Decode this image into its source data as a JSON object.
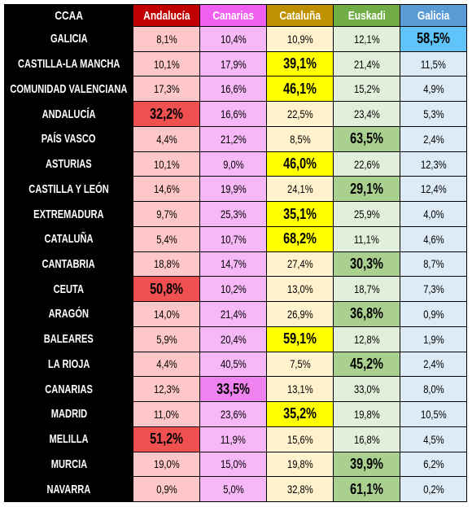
{
  "table": {
    "columns": [
      {
        "name": "CCAA",
        "header_color": "#000000",
        "cell_color": "#000000"
      },
      {
        "name": "Andalucía",
        "header_color": "#c00000",
        "cell_color": "#ffc7c7",
        "highlight_color": "#f05050"
      },
      {
        "name": "Canarias",
        "header_color": "#f060f0",
        "cell_color": "#f7b8f7",
        "highlight_color": "#ee82ee"
      },
      {
        "name": "Cataluña",
        "header_color": "#bf9000",
        "cell_color": "#fff2cc",
        "highlight_color": "#ffff00"
      },
      {
        "name": "Euskadi",
        "header_color": "#70ad47",
        "cell_color": "#e2efda",
        "highlight_color": "#a9d08e"
      },
      {
        "name": "Galicia",
        "header_color": "#5b9bd5",
        "cell_color": "#ddebf7",
        "highlight_color": "#5ec4fa"
      }
    ],
    "rows": [
      [
        "GALICIA",
        "8,1%",
        "10,4%",
        "10,9%",
        "12,1%",
        "58,5%"
      ],
      [
        "CASTILLA-LA MANCHA",
        "10,1%",
        "17,9%",
        "39,1%",
        "21,4%",
        "11,5%"
      ],
      [
        "COMUNIDAD VALENCIANA",
        "17,3%",
        "16,6%",
        "46,1%",
        "15,2%",
        "4,9%"
      ],
      [
        "ANDALUCÍA",
        "32,2%",
        "16,6%",
        "22,5%",
        "23,4%",
        "5,3%"
      ],
      [
        "PAÍS VASCO",
        "4,4%",
        "21,2%",
        "8,5%",
        "63,5%",
        "2,4%"
      ],
      [
        "ASTURIAS",
        "10,1%",
        "9,0%",
        "46,0%",
        "22,6%",
        "12,3%"
      ],
      [
        "CASTILLA Y LEÓN",
        "14,6%",
        "19,9%",
        "24,1%",
        "29,1%",
        "12,4%"
      ],
      [
        "EXTREMADURA",
        "9,7%",
        "25,3%",
        "35,1%",
        "25,9%",
        "4,0%"
      ],
      [
        "CATALUÑA",
        "5,4%",
        "10,7%",
        "68,2%",
        "11,1%",
        "4,6%"
      ],
      [
        "CANTABRIA",
        "18,8%",
        "14,7%",
        "27,4%",
        "30,3%",
        "8,7%"
      ],
      [
        "CEUTA",
        "50,8%",
        "10,2%",
        "13,0%",
        "18,7%",
        "7,3%"
      ],
      [
        "ARAGÓN",
        "14,0%",
        "21,4%",
        "26,9%",
        "36,8%",
        "0,9%"
      ],
      [
        "BALEARES",
        "5,9%",
        "20,4%",
        "59,1%",
        "12,8%",
        "1,9%"
      ],
      [
        "LA RIOJA",
        "4,4%",
        "40,5%",
        "7,5%",
        "45,2%",
        "2,4%"
      ],
      [
        "CANARIAS",
        "12,3%",
        "33,5%",
        "13,1%",
        "33,0%",
        "8,0%"
      ],
      [
        "MADRID",
        "11,0%",
        "23,6%",
        "35,2%",
        "19,8%",
        "10,5%"
      ],
      [
        "MELILLA",
        "51,2%",
        "11,9%",
        "15,6%",
        "16,8%",
        "4,5%"
      ],
      [
        "MURCIA",
        "19,0%",
        "15,0%",
        "19,8%",
        "39,9%",
        "6,2%"
      ],
      [
        "NAVARRA",
        "0,9%",
        "5,0%",
        "32,8%",
        "61,1%",
        "0,2%"
      ]
    ]
  }
}
